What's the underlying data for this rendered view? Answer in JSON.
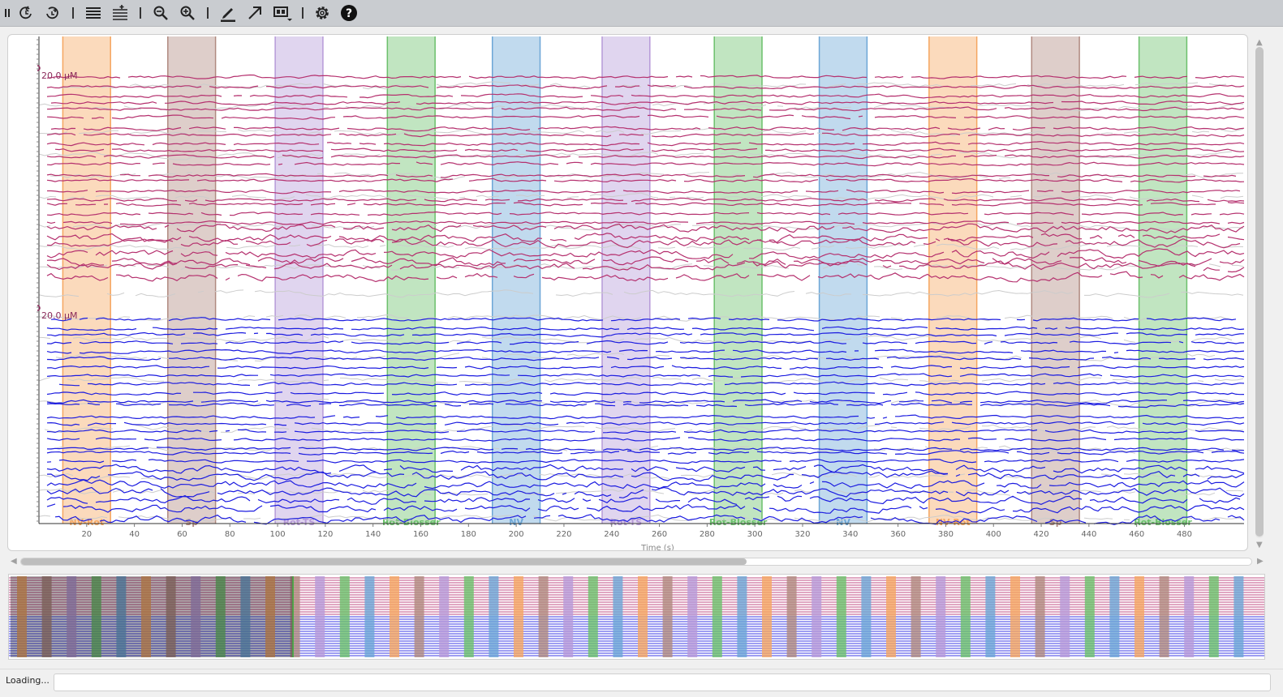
{
  "toolbar": {
    "items": [
      {
        "name": "pause-icon",
        "label": "pause"
      },
      {
        "name": "rotate-left-icon",
        "label": "rotate left"
      },
      {
        "name": "rotate-right-icon",
        "label": "rotate right"
      },
      {
        "name": "traces-compress-icon",
        "label": "traces compress"
      },
      {
        "name": "traces-expand-icon",
        "label": "traces expand"
      },
      {
        "name": "zoom-out-icon",
        "label": "zoom out"
      },
      {
        "name": "zoom-in-icon",
        "label": "zoom in"
      },
      {
        "name": "pen-icon",
        "label": "draw"
      },
      {
        "name": "arrow-icon",
        "label": "arrow"
      },
      {
        "name": "layout-dropdown-icon",
        "label": "layout"
      },
      {
        "name": "settings-gear-icon",
        "label": "settings"
      },
      {
        "name": "help-icon",
        "label": "help"
      }
    ]
  },
  "chart_data": {
    "type": "line",
    "xlabel": "Time (s)",
    "xlim": [
      0,
      505
    ],
    "xticks": [
      20,
      40,
      60,
      80,
      100,
      120,
      140,
      160,
      180,
      200,
      220,
      240,
      260,
      280,
      300,
      320,
      340,
      360,
      380,
      400,
      420,
      440,
      460,
      480
    ],
    "scale_bars": [
      {
        "label": "20.0 μM",
        "group": "magenta"
      },
      {
        "label": "20.0 μM",
        "group": "blue"
      }
    ],
    "stimuli": [
      {
        "label": "NV-Rot",
        "start": 10,
        "end": 30,
        "color": "#f5a660"
      },
      {
        "label": "Sp",
        "start": 54,
        "end": 74,
        "color": "#b08a80"
      },
      {
        "label": "Rot-TS",
        "start": 99,
        "end": 119,
        "color": "#b69ad8"
      },
      {
        "label": "Rot-Blosser",
        "start": 146,
        "end": 166,
        "color": "#6cc06c"
      },
      {
        "label": "NV",
        "start": 190,
        "end": 210,
        "color": "#6ca6d6"
      },
      {
        "label": "Rot-TS",
        "start": 236,
        "end": 256,
        "color": "#b69ad8"
      },
      {
        "label": "Rot-Blosser",
        "start": 283,
        "end": 303,
        "color": "#6cc06c"
      },
      {
        "label": "NV",
        "start": 327,
        "end": 347,
        "color": "#6ca6d6"
      },
      {
        "label": "NV-Rot",
        "start": 373,
        "end": 393,
        "color": "#f5a660"
      },
      {
        "label": "Sp",
        "start": 416,
        "end": 436,
        "color": "#b08a80"
      },
      {
        "label": "Rot-Blosser",
        "start": 461,
        "end": 481,
        "color": "#6cc06c"
      }
    ],
    "series": [
      {
        "group": "magenta",
        "color": "#b5306e",
        "count": 26
      },
      {
        "group": "blue",
        "color": "#1c1ce0",
        "count": 26
      },
      {
        "group": "background",
        "color": "#cccccc",
        "count": 20
      }
    ]
  },
  "overview": {
    "stimulus_colors": [
      "#f5a660",
      "#b08a80",
      "#b69ad8",
      "#6cc06c",
      "#6ca6d6"
    ],
    "visible_window_fraction": 0.225
  },
  "status": {
    "text": "Loading...",
    "field_value": ""
  }
}
